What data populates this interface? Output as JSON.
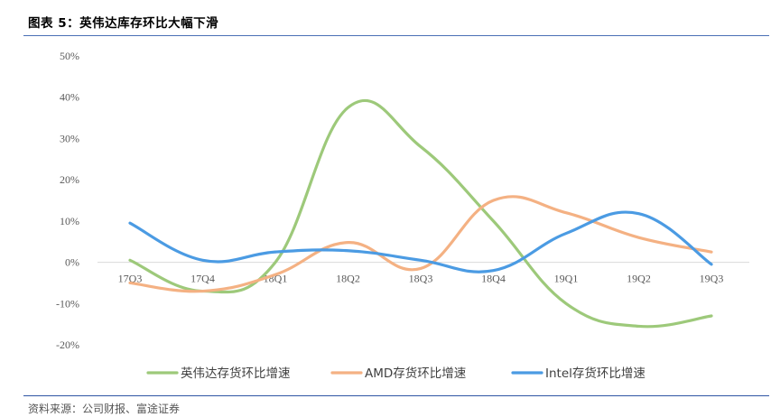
{
  "header": {
    "title": "图表 5：英伟达库存环比大幅下滑"
  },
  "footer": {
    "source": "资料来源：公司财报、富途证券"
  },
  "chart_data": {
    "type": "line",
    "title": "图表 5：英伟达库存环比大幅下滑",
    "xlabel": "",
    "ylabel": "",
    "categories": [
      "17Q3",
      "17Q4",
      "18Q1",
      "18Q2",
      "18Q3",
      "18Q4",
      "19Q1",
      "19Q2",
      "19Q3"
    ],
    "ylim": [
      -20,
      50
    ],
    "yticks": [
      -20,
      -10,
      0,
      10,
      20,
      30,
      40,
      50
    ],
    "ytick_labels": [
      "-20%",
      "-10%",
      "0%",
      "10%",
      "20%",
      "30%",
      "40%",
      "50%"
    ],
    "grid": false,
    "legend_position": "bottom",
    "smooth": true,
    "series": [
      {
        "name": "英伟达存货环比增速",
        "color": "#9dc97a",
        "values": [
          0.5,
          -7,
          0,
          37.5,
          28,
          10,
          -10,
          -15.5,
          -13
        ]
      },
      {
        "name": "AMD存货环比增速",
        "color": "#f4b183",
        "values": [
          -5,
          -7,
          -3,
          4.8,
          -1.5,
          15,
          12,
          6,
          2.5
        ]
      },
      {
        "name": "Intel存货环比增速",
        "color": "#4b9be3",
        "values": [
          9.5,
          0.5,
          2.5,
          2.8,
          0.5,
          -2,
          7,
          11.8,
          -0.5
        ]
      }
    ]
  }
}
